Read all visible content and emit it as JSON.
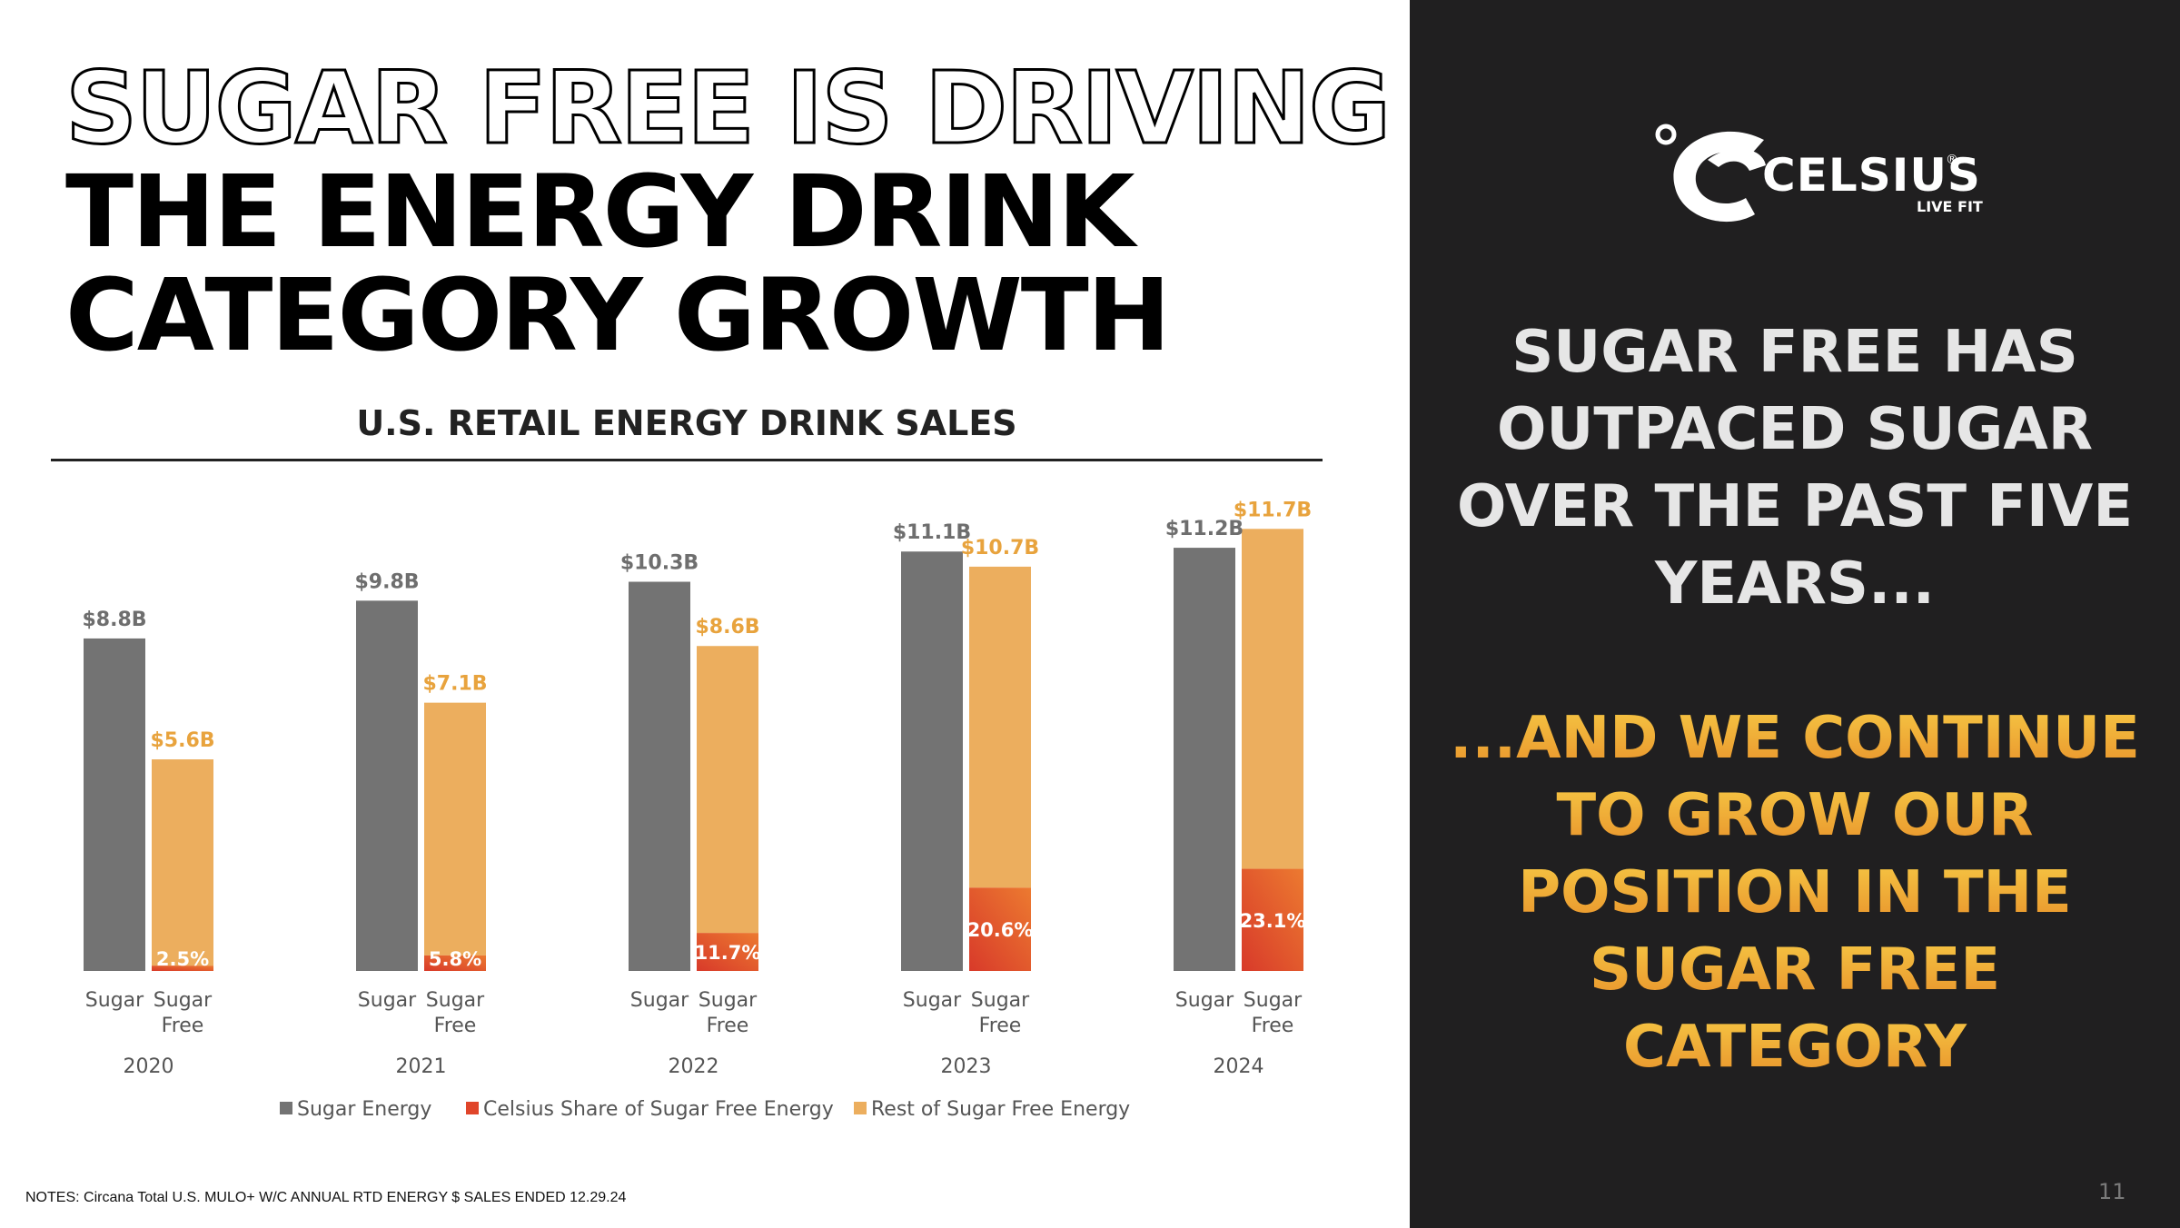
{
  "slide": {
    "title_outline": "SUGAR FREE IS DRIVING",
    "title_line2": "THE ENERGY DRINK",
    "title_line3": "CATEGORY GROWTH",
    "notes": "NOTES: Circana Total U.S. MULO+ W/C ANNUAL RTD ENERGY $ SALES ENDED 12.29.24",
    "page_number": "11"
  },
  "brand": {
    "name": "CELSIUS",
    "tagline": "LIVE FIT",
    "trademark": "®"
  },
  "side_panel": {
    "statement_lines": [
      "SUGAR FREE HAS",
      "OUTPACED SUGAR",
      "OVER THE PAST FIVE",
      "YEARS..."
    ],
    "continuation_lines": [
      "...AND WE CONTINUE",
      "TO GROW OUR",
      "POSITION IN THE",
      "SUGAR FREE",
      "CATEGORY"
    ]
  },
  "colors": {
    "sugar": "#737373",
    "celsius": "#e0452a",
    "celsius_light": "#e8742f",
    "rest_sugar_free": "#ecae5e",
    "label_orange": "#e8a33d",
    "label_gray": "#6e6e6e",
    "panel_bg": "#201f20",
    "gradient_top": "#f5c542",
    "gradient_bottom": "#e9902a"
  },
  "chart_data": {
    "type": "bar",
    "title": "U.S. RETAIL ENERGY DRINK SALES",
    "units": "USD billions",
    "ylim": [
      0,
      12
    ],
    "categories": [
      "2020",
      "2021",
      "2022",
      "2023",
      "2024"
    ],
    "bar_labels": [
      "Sugar",
      "Sugar Free"
    ],
    "series": [
      {
        "name": "Sugar Energy",
        "values": [
          8.8,
          9.8,
          10.3,
          11.1,
          11.2
        ],
        "labels": [
          "$8.8B",
          "$9.8B",
          "$10.3B",
          "$11.1B",
          "$11.2B"
        ]
      },
      {
        "name": "Sugar Free Energy (total)",
        "values": [
          5.6,
          7.1,
          8.6,
          10.7,
          11.7
        ],
        "labels": [
          "$5.6B",
          "$7.1B",
          "$8.6B",
          "$10.7B",
          "$11.7B"
        ]
      },
      {
        "name": "Celsius Share of Sugar Free Energy",
        "share_percent": [
          2.5,
          5.8,
          11.7,
          20.6,
          23.1
        ],
        "labels": [
          "2.5%",
          "5.8%",
          "11.7%",
          "20.6%",
          "23.1%"
        ]
      }
    ],
    "legend": [
      "Sugar Energy",
      "Celsius Share of Sugar Free Energy",
      "Rest of Sugar Free Energy"
    ],
    "legend_position": "bottom"
  }
}
